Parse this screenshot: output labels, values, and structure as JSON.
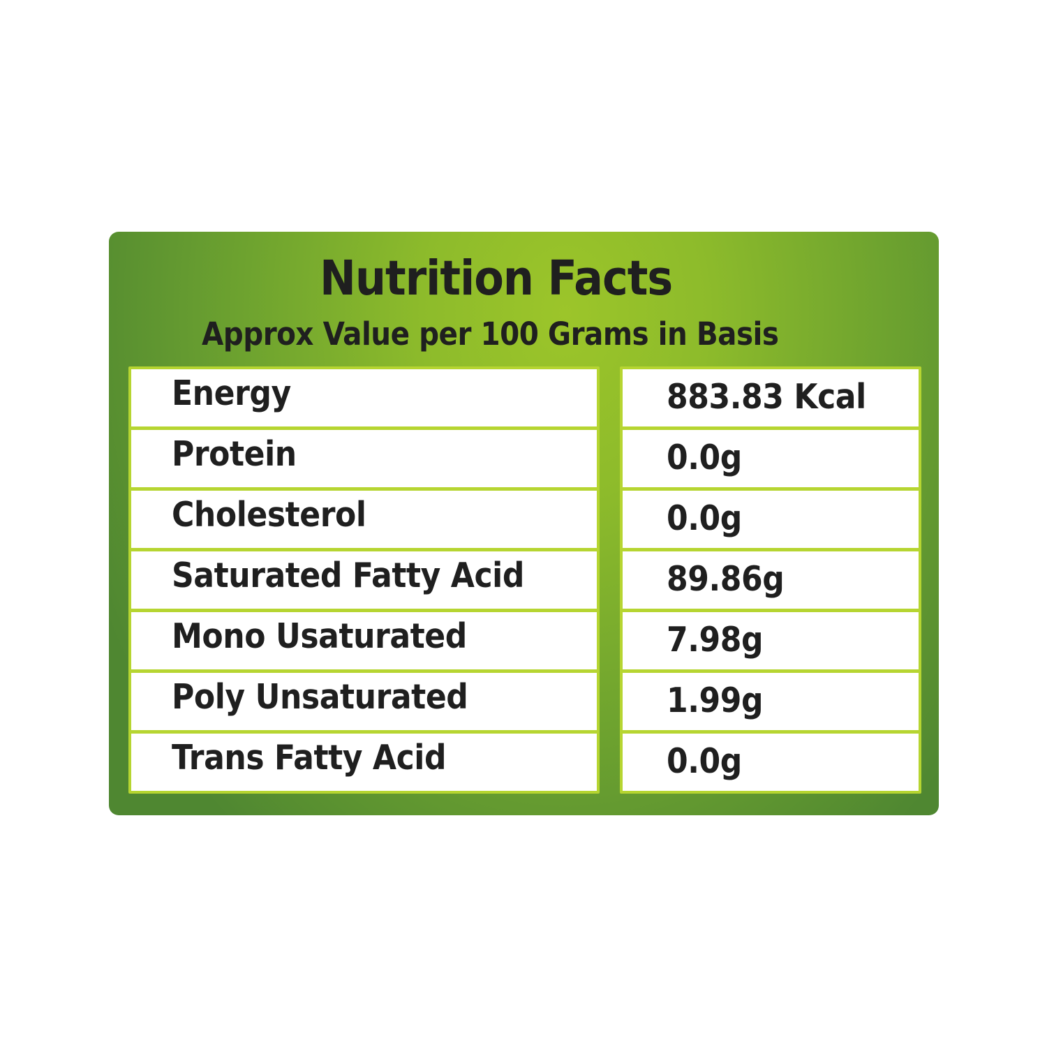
{
  "header": {
    "title": "Nutrition Facts",
    "subtitle": "Approx Value per 100 Grams in Basis"
  },
  "rows": [
    {
      "nutrient": "Energy",
      "value": "883.83 Kcal"
    },
    {
      "nutrient": "Protein",
      "value": "0.0g"
    },
    {
      "nutrient": "Cholesterol",
      "value": "0.0g"
    },
    {
      "nutrient": "Saturated Fatty Acid",
      "value": "89.86g"
    },
    {
      "nutrient": "Mono Usaturated",
      "value": "7.98g"
    },
    {
      "nutrient": "Poly Unsaturated",
      "value": "1.99g"
    },
    {
      "nutrient": "Trans Fatty Acid",
      "value": "0.0g"
    }
  ],
  "colors": {
    "panel_light": "#9cc52a",
    "panel_dark": "#4f8731",
    "cell_border": "#b6d531",
    "text": "#1f1f1f"
  }
}
